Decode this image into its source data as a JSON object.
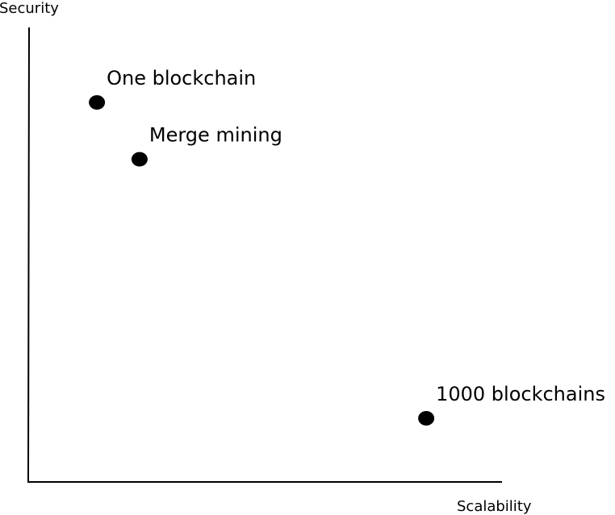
{
  "colors": {
    "background": "#ffffff",
    "ink": "#000000"
  },
  "chart_data": {
    "type": "scatter",
    "title": "",
    "xlabel": "Scalability",
    "ylabel": "Security",
    "xlim": [
      0,
      10
    ],
    "ylim": [
      0,
      10
    ],
    "grid": false,
    "ticks": false,
    "points": [
      {
        "label": "One blockchain",
        "x": 1.45,
        "y": 8.35
      },
      {
        "label": "Merge mining",
        "x": 2.35,
        "y": 7.1
      },
      {
        "label": "1000 blockchains",
        "x": 8.4,
        "y": 1.4
      }
    ]
  }
}
